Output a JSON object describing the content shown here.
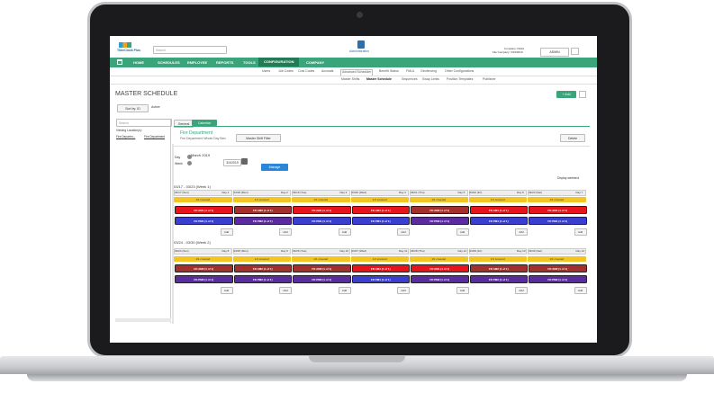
{
  "header": {
    "logo": "TimeClock Plus",
    "search": "Search",
    "center_label": "Administration",
    "company": "Company: Parks",
    "file_company": "File Company: 3/16/2019",
    "user": "ADMIN"
  },
  "nav": [
    "HOME",
    "SCHEDULES",
    "EMPLOYEE",
    "REPORTS",
    "TOOLS",
    "CONFIGURATION",
    "COMPANY"
  ],
  "subnav": [
    "Users",
    "Job Codes",
    "Cost Codes",
    "Accruals",
    "Advanced Scheduler",
    "Benefit Status",
    "FMLA",
    "Geofencing",
    "Other Configurations"
  ],
  "subsubnav": [
    "Master Shifts",
    "Master Schedule",
    "Sequences",
    "Swap Limits",
    "Position Templates",
    "Publisher"
  ],
  "page": {
    "title": "MASTER SCHEDULE",
    "add": "+ Add",
    "sort": "Sort by: ID",
    "active": "Active",
    "search": "Search",
    "tabs": [
      "General",
      "Calendar"
    ],
    "viewing": "Viewing Location(s):",
    "locations": [
      "Fire Departm...",
      "Fire Department"
    ],
    "dept": "Fire Department",
    "dept_sub": "Fire Department Whole Day Ban",
    "filter": "Master Shift Filter",
    "delete": "Delete",
    "month": "March 2019",
    "view_day": "Day",
    "view_week": "Week",
    "date": "3/4/2019",
    "manage": "Manage",
    "display_weekend": "Display weekend"
  },
  "weeks": [
    {
      "title": "03/17 - 03/23 (Week 1)",
      "days": [
        {
          "date": "03/17 (Sun)",
          "day": "Day 1",
          "coverage": "1/1 covered",
          "shifts": [
            {
              "label": "FD AM1 (1 of 1)",
              "color": "#e8141c"
            },
            {
              "label": "FD PM1 (1 of 1)",
              "color": "#3a3fcf"
            }
          ],
          "add": "Add"
        },
        {
          "date": "03/18 (Mon)",
          "day": "Day 2",
          "coverage": "1/1 covered",
          "shifts": [
            {
              "label": "FD AM2 (1 of 1)",
              "color": "#a3302c"
            },
            {
              "label": "FD PM2 (1 of 1)",
              "color": "#5a2ca0"
            }
          ],
          "add": "Add"
        },
        {
          "date": "03/19 (Tue)",
          "day": "Day 3",
          "coverage": "1/1 covered",
          "shifts": [
            {
              "label": "FD AM1 (1 of 1)",
              "color": "#e8141c"
            },
            {
              "label": "FD PM1 (1 of 1)",
              "color": "#3a3fcf"
            }
          ],
          "add": "Add"
        },
        {
          "date": "03/20 (Wed)",
          "day": "Day 4",
          "coverage": "1/1 covered",
          "shifts": [
            {
              "label": "FD AM1 (1 of 1)",
              "color": "#e8141c"
            },
            {
              "label": "FD PM1 (1 of 1)",
              "color": "#3a3fcf"
            }
          ],
          "add": "Add"
        },
        {
          "date": "03/21 (Thu)",
          "day": "Day 5",
          "coverage": "1/1 covered",
          "shifts": [
            {
              "label": "FD AM2 (1 of 1)",
              "color": "#a3302c"
            },
            {
              "label": "FD PM2 (1 of 1)",
              "color": "#5a2ca0"
            }
          ],
          "add": "Add"
        },
        {
          "date": "03/22 (Fri)",
          "day": "Day 6",
          "coverage": "1/1 covered",
          "shifts": [
            {
              "label": "FD AM1 (1 of 1)",
              "color": "#e8141c"
            },
            {
              "label": "FD PM1 (1 of 1)",
              "color": "#3a3fcf"
            }
          ],
          "add": "Add"
        },
        {
          "date": "03/23 (Sat)",
          "day": "Day 7",
          "coverage": "1/1 covered",
          "shifts": [
            {
              "label": "FD AM1 (1 of 1)",
              "color": "#e8141c"
            },
            {
              "label": "FD PM1 (1 of 1)",
              "color": "#3a3fcf"
            }
          ],
          "add": "Add"
        }
      ]
    },
    {
      "title": "03/24 - 03/30 (Week 2)",
      "days": [
        {
          "date": "03/24 (Sun)",
          "day": "Day 8",
          "coverage": "1/1 covered",
          "shifts": [
            {
              "label": "FD AM2 (1 of 1)",
              "color": "#a3302c"
            },
            {
              "label": "FD PM2 (1 of 1)",
              "color": "#5a2ca0"
            }
          ],
          "add": "Add"
        },
        {
          "date": "03/25 (Mon)",
          "day": "Day 9",
          "coverage": "1/1 covered",
          "shifts": [
            {
              "label": "FD AM2 (1 of 1)",
              "color": "#a3302c"
            },
            {
              "label": "FD PM2 (1 of 1)",
              "color": "#5a2ca0"
            }
          ],
          "add": "Add"
        },
        {
          "date": "03/26 (Tue)",
          "day": "Day 10",
          "coverage": "1/1 covered",
          "shifts": [
            {
              "label": "FD AM2 (1 of 1)",
              "color": "#a3302c"
            },
            {
              "label": "FD PM2 (1 of 1)",
              "color": "#5a2ca0"
            }
          ],
          "add": "Add"
        },
        {
          "date": "03/27 (Wed)",
          "day": "Day 11",
          "coverage": "1/1 covered",
          "shifts": [
            {
              "label": "FD AM1 (1 of 1)",
              "color": "#e8141c"
            },
            {
              "label": "FD PM1 (1 of 1)",
              "color": "#3a3fcf"
            }
          ],
          "add": "Add"
        },
        {
          "date": "03/28 (Thu)",
          "day": "Day 12",
          "coverage": "1/1 covered",
          "shifts": [
            {
              "label": "FD AM1 (1 of 1)",
              "color": "#e8141c"
            },
            {
              "label": "FD PM2 (1 of 1)",
              "color": "#5a2ca0"
            }
          ],
          "add": "Add"
        },
        {
          "date": "03/29 (Fri)",
          "day": "Day 13",
          "coverage": "1/1 covered",
          "shifts": [
            {
              "label": "FD AM2 (1 of 1)",
              "color": "#a3302c"
            },
            {
              "label": "FD PM2 (1 of 1)",
              "color": "#5a2ca0"
            }
          ],
          "add": "Add"
        },
        {
          "date": "03/30 (Sat)",
          "day": "Day 14",
          "coverage": "1/1 covered",
          "shifts": [
            {
              "label": "FD AM2 (1 of 1)",
              "color": "#a3302c"
            },
            {
              "label": "FD PM2 (1 of 1)",
              "color": "#5a2ca0"
            }
          ],
          "add": "Add"
        }
      ]
    }
  ]
}
